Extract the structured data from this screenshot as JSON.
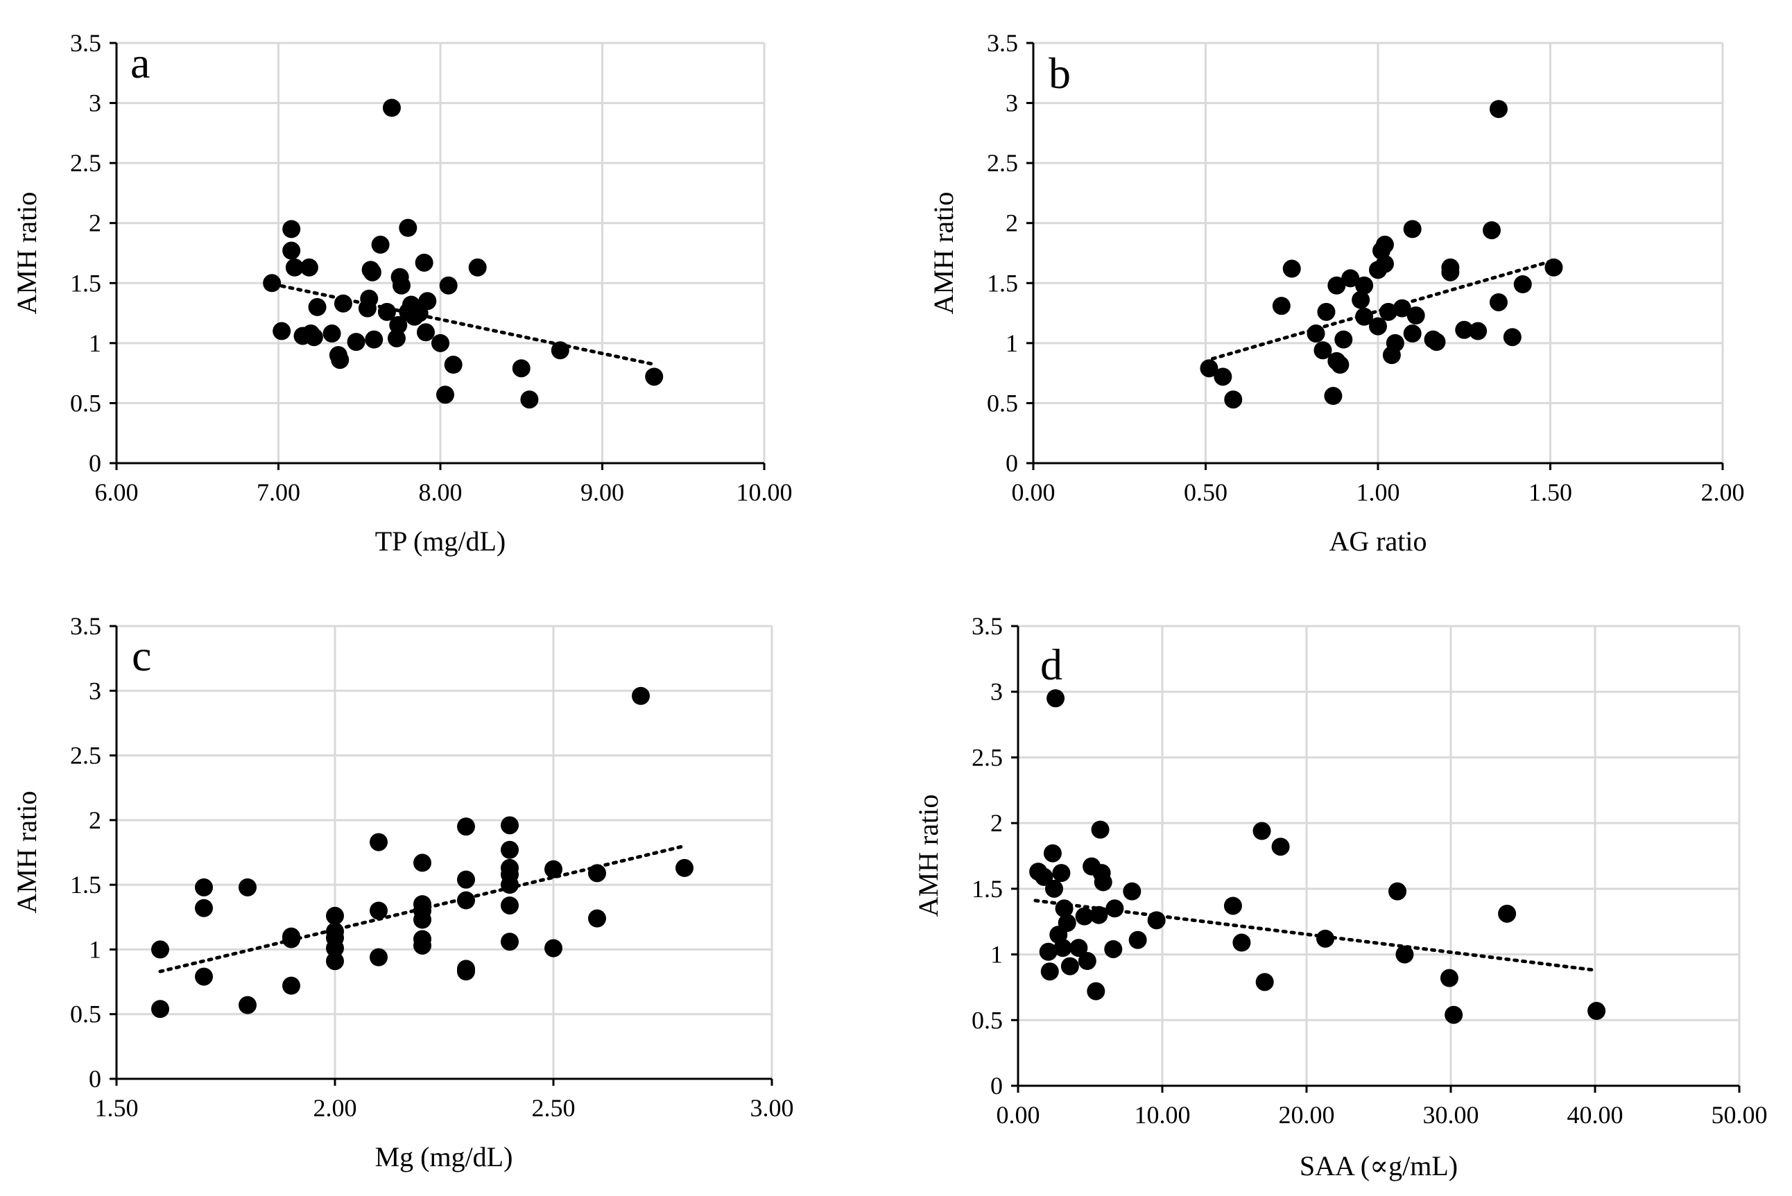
{
  "chart_data": [
    {
      "type": "scatter",
      "panel_label": "a",
      "xlabel": "TP (mg/dL)",
      "ylabel": "AMH ratio",
      "xlim": [
        6.0,
        10.0
      ],
      "ylim": [
        0,
        3.5
      ],
      "x_ticks": [
        "6.00",
        "7.00",
        "8.00",
        "9.00",
        "10.00"
      ],
      "y_ticks": [
        "0",
        "0.5",
        "1",
        "1.5",
        "2",
        "2.5",
        "3",
        "3.5"
      ],
      "grid": true,
      "trendline": {
        "x": [
          6.97,
          9.33
        ],
        "y": [
          1.49,
          0.82
        ]
      },
      "points": [
        [
          6.96,
          1.5
        ],
        [
          7.02,
          1.1
        ],
        [
          7.08,
          1.95
        ],
        [
          7.08,
          1.77
        ],
        [
          7.1,
          1.63
        ],
        [
          7.15,
          1.06
        ],
        [
          7.19,
          1.63
        ],
        [
          7.2,
          1.08
        ],
        [
          7.22,
          1.05
        ],
        [
          7.24,
          1.3
        ],
        [
          7.33,
          1.08
        ],
        [
          7.37,
          0.9
        ],
        [
          7.38,
          0.86
        ],
        [
          7.4,
          1.33
        ],
        [
          7.48,
          1.01
        ],
        [
          7.55,
          1.29
        ],
        [
          7.56,
          1.37
        ],
        [
          7.57,
          1.61
        ],
        [
          7.58,
          1.59
        ],
        [
          7.59,
          1.03
        ],
        [
          7.63,
          1.82
        ],
        [
          7.67,
          1.26
        ],
        [
          7.7,
          2.96
        ],
        [
          7.73,
          1.04
        ],
        [
          7.74,
          1.15
        ],
        [
          7.75,
          1.55
        ],
        [
          7.76,
          1.48
        ],
        [
          7.8,
          1.96
        ],
        [
          7.8,
          1.26
        ],
        [
          7.82,
          1.32
        ],
        [
          7.84,
          1.22
        ],
        [
          7.87,
          1.25
        ],
        [
          7.9,
          1.67
        ],
        [
          7.91,
          1.09
        ],
        [
          7.92,
          1.35
        ],
        [
          8.0,
          1.0
        ],
        [
          8.03,
          0.57
        ],
        [
          8.05,
          1.48
        ],
        [
          8.08,
          0.82
        ],
        [
          8.23,
          1.63
        ],
        [
          8.5,
          0.79
        ],
        [
          8.55,
          0.53
        ],
        [
          8.74,
          0.94
        ],
        [
          9.32,
          0.72
        ]
      ]
    },
    {
      "type": "scatter",
      "panel_label": "b",
      "xlabel": "AG ratio",
      "ylabel": "AMH ratio",
      "xlim": [
        0.0,
        2.0
      ],
      "ylim": [
        0,
        3.5
      ],
      "x_ticks": [
        "0.00",
        "0.50",
        "1.00",
        "1.50",
        "2.00"
      ],
      "y_ticks": [
        "0",
        "0.5",
        "1",
        "1.5",
        "2",
        "2.5",
        "3",
        "3.5"
      ],
      "grid": true,
      "trendline": {
        "x": [
          0.52,
          1.5
        ],
        "y": [
          0.87,
          1.68
        ]
      },
      "points": [
        [
          0.51,
          0.79
        ],
        [
          0.55,
          0.72
        ],
        [
          0.58,
          0.53
        ],
        [
          0.72,
          1.31
        ],
        [
          0.75,
          1.62
        ],
        [
          0.82,
          1.08
        ],
        [
          0.84,
          0.94
        ],
        [
          0.85,
          1.26
        ],
        [
          0.87,
          0.56
        ],
        [
          0.88,
          1.48
        ],
        [
          0.88,
          0.85
        ],
        [
          0.89,
          0.82
        ],
        [
          0.9,
          1.03
        ],
        [
          0.92,
          1.54
        ],
        [
          0.95,
          1.36
        ],
        [
          0.96,
          1.48
        ],
        [
          0.96,
          1.22
        ],
        [
          1.0,
          1.14
        ],
        [
          1.0,
          1.61
        ],
        [
          1.01,
          1.77
        ],
        [
          1.02,
          1.82
        ],
        [
          1.02,
          1.66
        ],
        [
          1.03,
          1.26
        ],
        [
          1.04,
          0.9
        ],
        [
          1.05,
          1.0
        ],
        [
          1.07,
          1.29
        ],
        [
          1.1,
          1.95
        ],
        [
          1.1,
          1.08
        ],
        [
          1.11,
          1.23
        ],
        [
          1.16,
          1.03
        ],
        [
          1.17,
          1.01
        ],
        [
          1.21,
          1.63
        ],
        [
          1.21,
          1.59
        ],
        [
          1.25,
          1.11
        ],
        [
          1.29,
          1.1
        ],
        [
          1.33,
          1.94
        ],
        [
          1.35,
          2.95
        ],
        [
          1.35,
          1.34
        ],
        [
          1.39,
          1.05
        ],
        [
          1.42,
          1.49
        ],
        [
          1.51,
          1.63
        ]
      ]
    },
    {
      "type": "scatter",
      "panel_label": "c",
      "xlabel": "Mg (mg/dL)",
      "ylabel": "AMH ratio",
      "xlim": [
        1.5,
        3.0
      ],
      "ylim": [
        0,
        3.5
      ],
      "x_ticks": [
        "1.50",
        "2.00",
        "2.50",
        "3.00"
      ],
      "y_ticks": [
        "0",
        "0.5",
        "1",
        "1.5",
        "2",
        "2.5",
        "3",
        "3.5"
      ],
      "grid": true,
      "trendline": {
        "x": [
          1.6,
          2.8
        ],
        "y": [
          0.83,
          1.8
        ]
      },
      "points": [
        [
          1.6,
          1.0
        ],
        [
          1.6,
          0.54
        ],
        [
          1.7,
          1.48
        ],
        [
          1.7,
          1.32
        ],
        [
          1.7,
          0.79
        ],
        [
          1.8,
          1.48
        ],
        [
          1.8,
          0.57
        ],
        [
          1.9,
          1.1
        ],
        [
          1.9,
          1.08
        ],
        [
          1.9,
          0.72
        ],
        [
          2.0,
          1.26
        ],
        [
          2.0,
          1.14
        ],
        [
          2.0,
          1.09
        ],
        [
          2.0,
          1.01
        ],
        [
          2.0,
          0.91
        ],
        [
          2.1,
          1.83
        ],
        [
          2.1,
          1.3
        ],
        [
          2.1,
          0.94
        ],
        [
          2.2,
          1.67
        ],
        [
          2.2,
          1.35
        ],
        [
          2.2,
          1.3
        ],
        [
          2.2,
          1.23
        ],
        [
          2.2,
          1.08
        ],
        [
          2.2,
          1.03
        ],
        [
          2.3,
          1.95
        ],
        [
          2.3,
          1.54
        ],
        [
          2.3,
          1.38
        ],
        [
          2.3,
          0.85
        ],
        [
          2.3,
          0.83
        ],
        [
          2.4,
          1.96
        ],
        [
          2.4,
          1.77
        ],
        [
          2.4,
          1.63
        ],
        [
          2.4,
          1.58
        ],
        [
          2.4,
          1.5
        ],
        [
          2.4,
          1.34
        ],
        [
          2.4,
          1.06
        ],
        [
          2.5,
          1.62
        ],
        [
          2.5,
          1.01
        ],
        [
          2.6,
          1.59
        ],
        [
          2.6,
          1.24
        ],
        [
          2.7,
          2.96
        ],
        [
          2.8,
          1.63
        ]
      ]
    },
    {
      "type": "scatter",
      "panel_label": "d",
      "xlabel": "SAA (∝g/mL)",
      "ylabel": "AMH ratio",
      "xlim": [
        0.0,
        50.0
      ],
      "ylim": [
        0,
        3.5
      ],
      "x_ticks": [
        "0.00",
        "10.00",
        "20.00",
        "30.00",
        "40.00",
        "50.00"
      ],
      "y_ticks": [
        "0",
        "0.5",
        "1",
        "1.5",
        "2",
        "2.5",
        "3",
        "3.5"
      ],
      "grid": true,
      "trendline": {
        "x": [
          1.2,
          40.0
        ],
        "y": [
          1.41,
          0.88
        ]
      },
      "points": [
        [
          1.4,
          1.63
        ],
        [
          1.8,
          1.59
        ],
        [
          2.1,
          1.02
        ],
        [
          2.2,
          0.87
        ],
        [
          2.4,
          1.77
        ],
        [
          2.5,
          1.5
        ],
        [
          2.6,
          2.95
        ],
        [
          2.8,
          1.15
        ],
        [
          3.0,
          1.62
        ],
        [
          3.1,
          1.05
        ],
        [
          3.2,
          1.35
        ],
        [
          3.4,
          1.24
        ],
        [
          3.6,
          0.91
        ],
        [
          4.2,
          1.05
        ],
        [
          4.6,
          1.29
        ],
        [
          4.8,
          0.95
        ],
        [
          5.1,
          1.67
        ],
        [
          5.4,
          0.72
        ],
        [
          5.6,
          1.3
        ],
        [
          5.7,
          1.95
        ],
        [
          5.8,
          1.62
        ],
        [
          5.9,
          1.55
        ],
        [
          6.6,
          1.04
        ],
        [
          6.7,
          1.35
        ],
        [
          7.9,
          1.48
        ],
        [
          8.3,
          1.11
        ],
        [
          9.6,
          1.26
        ],
        [
          14.9,
          1.37
        ],
        [
          15.5,
          1.09
        ],
        [
          16.9,
          1.94
        ],
        [
          17.1,
          0.79
        ],
        [
          18.2,
          1.82
        ],
        [
          21.3,
          1.12
        ],
        [
          26.3,
          1.48
        ],
        [
          26.8,
          1.0
        ],
        [
          29.9,
          0.82
        ],
        [
          30.2,
          0.54
        ],
        [
          33.9,
          1.31
        ],
        [
          40.1,
          0.57
        ]
      ]
    }
  ]
}
